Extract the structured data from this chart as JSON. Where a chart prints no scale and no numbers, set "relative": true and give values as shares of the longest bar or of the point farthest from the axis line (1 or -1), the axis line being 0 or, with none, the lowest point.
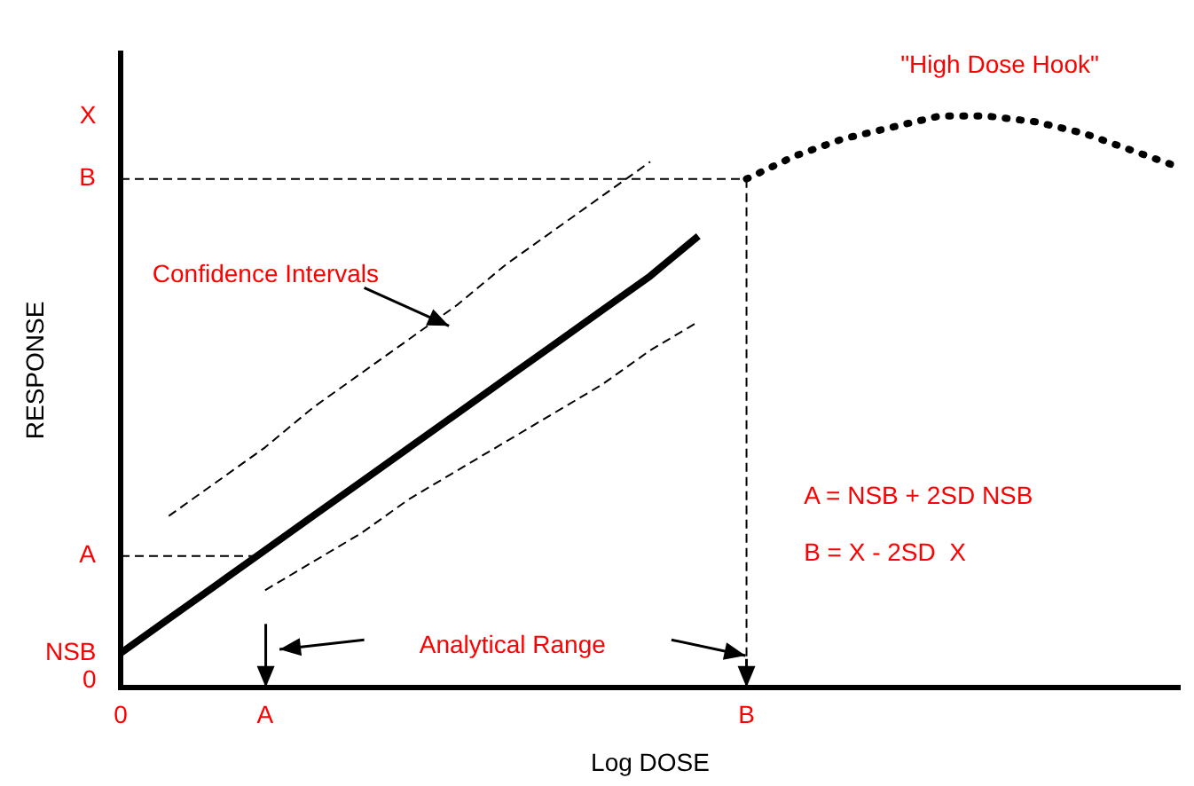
{
  "chart_data": {
    "type": "line",
    "relative": true,
    "xlabel": "Log DOSE",
    "ylabel": "RESPONSE",
    "legend": false,
    "grid": false,
    "categories": [
      "0",
      null,
      null,
      "A",
      null,
      null,
      null,
      null,
      null,
      null,
      null,
      null,
      null,
      "B",
      null,
      null,
      null,
      null,
      null,
      null,
      null,
      null,
      null
    ],
    "series": [
      {
        "color": "#000000",
        "line_style": "solid",
        "values": [
          0.06,
          0.12,
          0.18,
          0.24,
          0.3,
          0.36,
          0.42,
          0.48,
          0.54,
          0.6,
          0.66,
          0.72,
          0.79,
          null,
          null,
          null,
          null,
          null,
          null,
          null,
          null,
          null,
          null
        ]
      },
      {
        "color": "#000000",
        "line_style": "dashed",
        "values": [
          null,
          0.3,
          0.36,
          0.42,
          0.49,
          0.55,
          0.61,
          0.67,
          0.74,
          0.8,
          0.86,
          0.92,
          null,
          null,
          null,
          null,
          null,
          null,
          null,
          null,
          null,
          null,
          null
        ]
      },
      {
        "color": "#000000",
        "line_style": "dashed",
        "values": [
          null,
          null,
          null,
          0.17,
          0.22,
          0.27,
          0.33,
          0.38,
          0.43,
          0.48,
          0.53,
          0.59,
          0.64,
          null,
          null,
          null,
          null,
          null,
          null,
          null,
          null,
          null,
          null
        ]
      },
      {
        "color": "#000000",
        "line_style": "dotted",
        "values": [
          null,
          null,
          null,
          null,
          null,
          null,
          null,
          null,
          null,
          null,
          null,
          null,
          null,
          0.89,
          0.93,
          0.96,
          0.98,
          1.0,
          1.0,
          0.99,
          0.97,
          0.94,
          0.91
        ]
      }
    ],
    "ref_lines": [
      {
        "axis": "y",
        "value": 0.23,
        "label": "A",
        "line_style": "dashed"
      },
      {
        "axis": "y",
        "value": 0.89,
        "label": "B",
        "line_style": "dashed"
      },
      {
        "axis": "x",
        "value": "B",
        "label": null,
        "line_style": "dashed"
      }
    ],
    "annotations": [
      "X",
      "NSB",
      "0",
      "Confidence Intervals",
      "Analytical Range",
      "A = NSB + 2SD NSB",
      "B = X - 2SD  X",
      "\"High Dose Hook\""
    ]
  }
}
